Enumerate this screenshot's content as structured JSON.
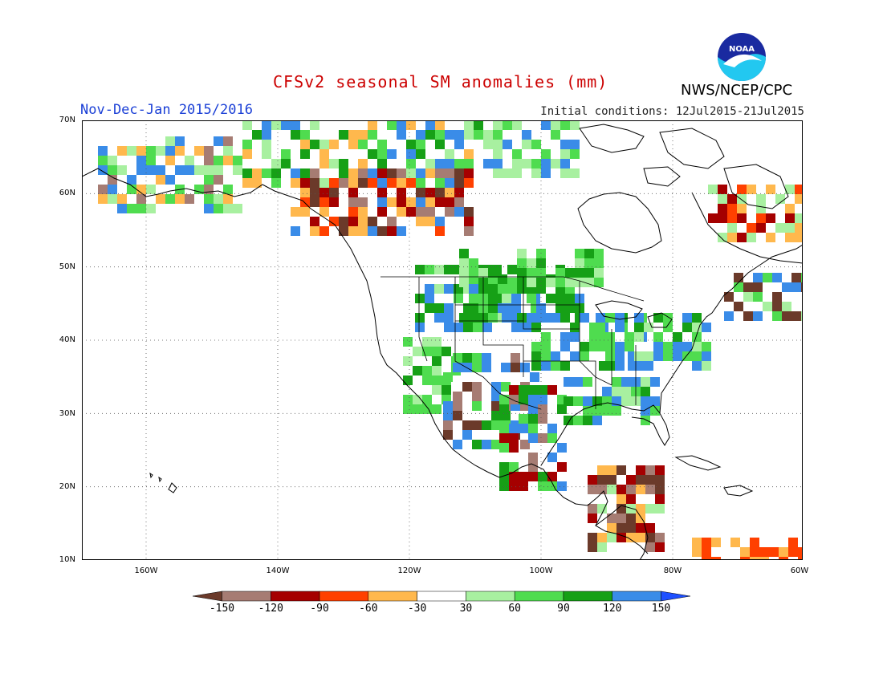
{
  "title": "CFSv2 seasonal SM anomalies (mm)",
  "period": "Nov-Dec-Jan 2015/2016",
  "initial_conditions": "Initial conditions: 12Jul2015-21Jul2015",
  "agency": "NWS/NCEP/CPC",
  "logo_text": "NOAA",
  "lat_labels": [
    "70N",
    "60N",
    "50N",
    "40N",
    "30N",
    "20N",
    "10N"
  ],
  "lon_labels": [
    "160W",
    "140W",
    "120W",
    "100W",
    "80W",
    "60W"
  ],
  "colorbar": {
    "labels": [
      "-150",
      "-120",
      "-90",
      "-60",
      "-30",
      "30",
      "60",
      "90",
      "120",
      "150"
    ],
    "colors": [
      "#6b3a2a",
      "#a67c73",
      "#a50000",
      "#ff4000",
      "#ffb84d",
      "#ffffff",
      "#a8f0a0",
      "#4fdc4f",
      "#16a016",
      "#3a8ce8",
      "#1e50ff"
    ]
  },
  "palette": {
    "dry_dark": "#6b3a2a",
    "dry_brown": "#a67c73",
    "dry_red": "#a50000",
    "dry_orange": "#ff4000",
    "dry_light": "#ffb84d",
    "wet_light": "#a8f0a0",
    "wet_mid": "#4fdc4f",
    "wet_dark": "#16a016",
    "wet_blue": "#3a8ce8"
  }
}
